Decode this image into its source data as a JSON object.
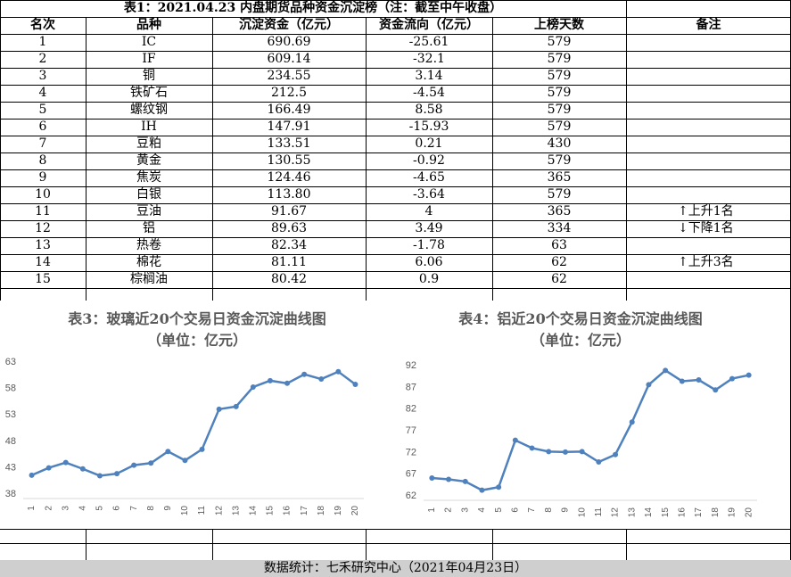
{
  "table": {
    "title": "表1：2021.04.23 内盘期货品种资金沉淀榜（注：截至中午收盘）",
    "headers": [
      "名次",
      "品种",
      "沉淀资金（亿元）",
      "资金流向（亿元）",
      "上榜天数",
      "备注"
    ],
    "rows": [
      {
        "rank": "1",
        "name": "IC",
        "fund": "690.69",
        "flow": "-25.61",
        "days": "579",
        "note": ""
      },
      {
        "rank": "2",
        "name": "IF",
        "fund": "609.14",
        "flow": "-32.1",
        "days": "579",
        "note": ""
      },
      {
        "rank": "3",
        "name": "铜",
        "fund": "234.55",
        "flow": "3.14",
        "days": "579",
        "note": ""
      },
      {
        "rank": "4",
        "name": "铁矿石",
        "fund": "212.5",
        "flow": "-4.54",
        "days": "579",
        "note": ""
      },
      {
        "rank": "5",
        "name": "螺纹钢",
        "fund": "166.49",
        "flow": "8.58",
        "days": "579",
        "note": ""
      },
      {
        "rank": "6",
        "name": "IH",
        "fund": "147.91",
        "flow": "-15.93",
        "days": "579",
        "note": ""
      },
      {
        "rank": "7",
        "name": "豆粕",
        "fund": "133.51",
        "flow": "0.21",
        "days": "430",
        "note": ""
      },
      {
        "rank": "8",
        "name": "黄金",
        "fund": "130.55",
        "flow": "-0.92",
        "days": "579",
        "note": ""
      },
      {
        "rank": "9",
        "name": "焦炭",
        "fund": "124.46",
        "flow": "-4.65",
        "days": "365",
        "note": ""
      },
      {
        "rank": "10",
        "name": "白银",
        "fund": "113.80",
        "flow": "-3.64",
        "days": "579",
        "note": ""
      },
      {
        "rank": "11",
        "name": "豆油",
        "fund": "91.67",
        "flow": "4",
        "days": "365",
        "note": "↑上升1名"
      },
      {
        "rank": "12",
        "name": "铝",
        "fund": "89.63",
        "flow": "3.49",
        "days": "334",
        "note": "↓下降1名"
      },
      {
        "rank": "13",
        "name": "热卷",
        "fund": "82.34",
        "flow": "-1.78",
        "days": "63",
        "note": ""
      },
      {
        "rank": "14",
        "name": "棉花",
        "fund": "81.11",
        "flow": "6.06",
        "days": "62",
        "note": "↑上升3名"
      },
      {
        "rank": "15",
        "name": "棕榈油",
        "fund": "80.42",
        "flow": "0.9",
        "days": "62",
        "note": ""
      }
    ]
  },
  "chart_data": [
    {
      "type": "line",
      "title": "表3：玻璃近20个交易日资金沉淀曲线图",
      "subtitle": "（单位：亿元）",
      "x": [
        "1",
        "2",
        "3",
        "4",
        "5",
        "6",
        "7",
        "8",
        "9",
        "10",
        "11",
        "12",
        "13",
        "14",
        "15",
        "16",
        "17",
        "18",
        "19",
        "20"
      ],
      "series": [
        {
          "values": [
            41.4,
            42.8,
            43.8,
            42.6,
            41.3,
            41.7,
            43.3,
            43.7,
            45.9,
            44.2,
            46.3,
            53.9,
            54.4,
            58.1,
            59.3,
            58.8,
            60.5,
            59.6,
            61.0,
            58.6
          ]
        }
      ],
      "yticks": [
        38,
        43,
        48,
        53,
        58,
        63
      ],
      "ylim": [
        38,
        64
      ],
      "color": "#4f81bd",
      "grid": false
    },
    {
      "type": "line",
      "title": "表4：铝近20个交易日资金沉淀曲线图",
      "subtitle": "（单位：亿元）",
      "x": [
        "1",
        "2",
        "3",
        "4",
        "5",
        "6",
        "7",
        "8",
        "9",
        "10",
        "11",
        "12",
        "13",
        "14",
        "15",
        "16",
        "17",
        "18",
        "19",
        "20"
      ],
      "series": [
        {
          "values": [
            65.9,
            65.6,
            65.1,
            63.1,
            63.8,
            74.6,
            72.8,
            72.0,
            71.9,
            72.0,
            69.6,
            71.3,
            78.8,
            87.4,
            90.7,
            88.2,
            88.5,
            86.2,
            88.8,
            89.6
          ]
        }
      ],
      "yticks": [
        62,
        67,
        72,
        77,
        82,
        87,
        92
      ],
      "ylim": [
        62,
        92
      ],
      "color": "#4f81bd",
      "grid": false
    }
  ],
  "footer": {
    "text": "数据统计：七禾研究中心（2021年04月23日）"
  }
}
